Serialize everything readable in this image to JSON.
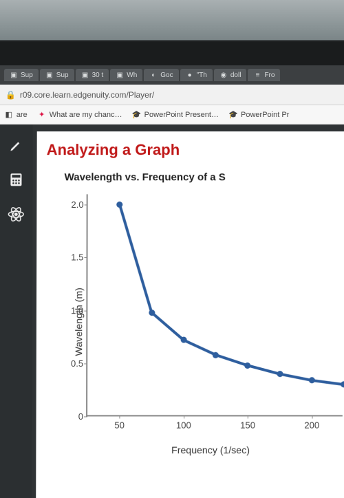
{
  "browser": {
    "tabs": [
      {
        "favicon": "▣",
        "label": "Sup"
      },
      {
        "favicon": "▣",
        "label": "Sup"
      },
      {
        "favicon": "▣",
        "label": "30 t"
      },
      {
        "favicon": "▣",
        "label": "Wh"
      },
      {
        "favicon": "◐",
        "label": "Goc"
      },
      {
        "favicon": "●",
        "label": "\"Th"
      },
      {
        "favicon": "◉",
        "label": "doll"
      },
      {
        "favicon": "≡",
        "label": "Fro"
      }
    ],
    "address": "r09.core.learn.edgenuity.com/Player/",
    "bookmarks": [
      {
        "icon": "◧",
        "label": "are"
      },
      {
        "icon": "✦",
        "label": "What are my chanc…",
        "iconColor": "#d14"
      },
      {
        "icon": "🎓",
        "label": "PowerPoint Present…"
      },
      {
        "icon": "🎓",
        "label": "PowerPoint Pr"
      }
    ]
  },
  "page": {
    "section_title": "Analyzing a Graph",
    "section_title_color": "#c01818",
    "chart": {
      "type": "line",
      "title": "Wavelength vs. Frequency of a S",
      "xlabel": "Frequency (1/sec)",
      "ylabel": "Wavelength (m)",
      "xlim": [
        25,
        225
      ],
      "ylim": [
        0,
        2.1
      ],
      "xticks": [
        50,
        100,
        150,
        200
      ],
      "yticks": [
        0,
        0.5,
        1.0,
        1.5,
        2.0
      ],
      "ytick_labels": [
        "0",
        "0.5",
        "1.0",
        "1.5",
        "2.0"
      ],
      "points": [
        {
          "x": 50,
          "y": 2.0
        },
        {
          "x": 75,
          "y": 0.98
        },
        {
          "x": 100,
          "y": 0.72
        },
        {
          "x": 125,
          "y": 0.58
        },
        {
          "x": 150,
          "y": 0.48
        },
        {
          "x": 175,
          "y": 0.4
        },
        {
          "x": 200,
          "y": 0.34
        },
        {
          "x": 225,
          "y": 0.3
        }
      ],
      "line_color": "#2e5e9e",
      "line_width": 4,
      "marker_color": "#2e5e9e",
      "marker_size": 9,
      "axis_color": "#888888",
      "background": "#ffffff",
      "tick_fontsize": 13,
      "label_fontsize": 14,
      "title_fontsize": 15
    }
  }
}
